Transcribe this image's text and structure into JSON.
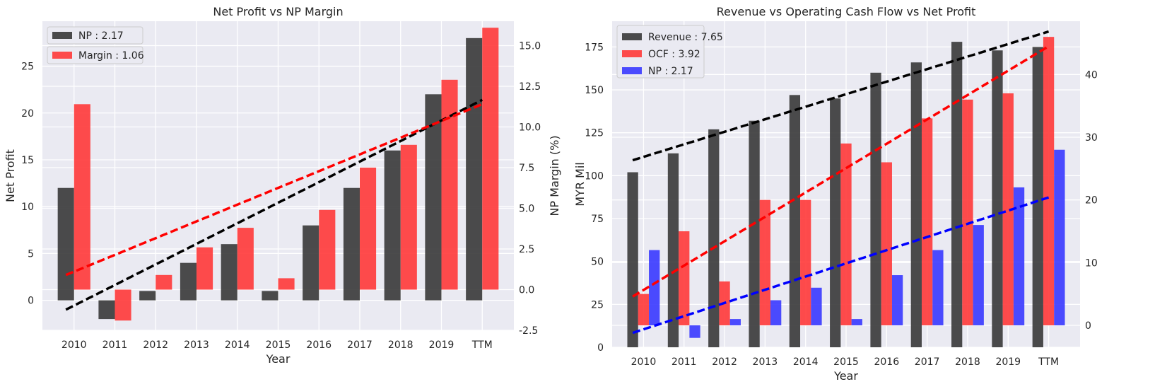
{
  "chart_data": [
    {
      "type": "bar",
      "title": "Net Profit vs NP Margin",
      "xlabel": "Year",
      "ylabel": "Net Profit",
      "ylabel_right": "NP Margin (%)",
      "categories": [
        "2010",
        "2011",
        "2012",
        "2013",
        "2014",
        "2015",
        "2016",
        "2017",
        "2018",
        "2019",
        "TTM"
      ],
      "ylim": [
        -3.2,
        29.8
      ],
      "ylim_right": [
        -2.5,
        16.5
      ],
      "yticks": [
        0,
        5,
        10,
        15,
        20,
        25
      ],
      "yticks_right": [
        -2.5,
        0.0,
        2.5,
        5.0,
        7.5,
        10.0,
        12.5,
        15.0
      ],
      "grid": true,
      "series": [
        {
          "name": "NP : 2.17",
          "axis": "left",
          "color": "#333333",
          "values": [
            12,
            -2,
            1,
            4,
            6,
            1,
            8,
            12,
            16,
            22,
            28
          ]
        },
        {
          "name": "Margin : 1.06",
          "axis": "right",
          "color": "#ff3333",
          "values": [
            11.4,
            -1.9,
            0.9,
            2.6,
            3.8,
            0.7,
            4.9,
            7.5,
            8.9,
            12.9,
            16.1
          ]
        }
      ],
      "trendlines": [
        {
          "axis": "left",
          "color": "#000000",
          "values": [
            -1.0,
            21.4
          ]
        },
        {
          "axis": "right",
          "color": "#ff0000",
          "values": [
            0.9,
            11.4
          ]
        }
      ],
      "legend": "top-left"
    },
    {
      "type": "bar",
      "title": "Revenue vs Operating Cash Flow vs Net Profit",
      "xlabel": "Year",
      "ylabel": "MYR Mil",
      "categories": [
        "2010",
        "2011",
        "2012",
        "2013",
        "2014",
        "2015",
        "2016",
        "2017",
        "2018",
        "2019",
        "TTM"
      ],
      "ylim": [
        0,
        190
      ],
      "ylim_right": [
        -3.5,
        48.5
      ],
      "yticks": [
        0,
        25,
        50,
        75,
        100,
        125,
        150,
        175
      ],
      "yticks_right": [
        0,
        10,
        20,
        30,
        40
      ],
      "grid": true,
      "series": [
        {
          "name": "Revenue : 7.65",
          "axis": "left",
          "color": "#333333",
          "values": [
            102,
            113,
            127,
            132,
            147,
            145,
            160,
            166,
            178,
            173,
            175
          ]
        },
        {
          "name": "OCF : 3.92",
          "axis": "right",
          "color": "#ff3333",
          "values": [
            5,
            15,
            7,
            20,
            20,
            29,
            26,
            33,
            36,
            37,
            46
          ]
        },
        {
          "name": "NP : 2.17",
          "axis": "right",
          "color": "#3333ff",
          "values": [
            12,
            -2,
            1,
            4,
            6,
            1,
            8,
            12,
            16,
            22,
            28
          ]
        }
      ],
      "trendlines": [
        {
          "axis": "left",
          "color": "#000000",
          "values": [
            109,
            184
          ]
        },
        {
          "axis": "right",
          "color": "#ff0000",
          "values": [
            4.6,
            44.5
          ]
        },
        {
          "axis": "right",
          "color": "#0000ff",
          "values": [
            -1.2,
            20.4
          ]
        }
      ],
      "legend": "top-left"
    }
  ]
}
